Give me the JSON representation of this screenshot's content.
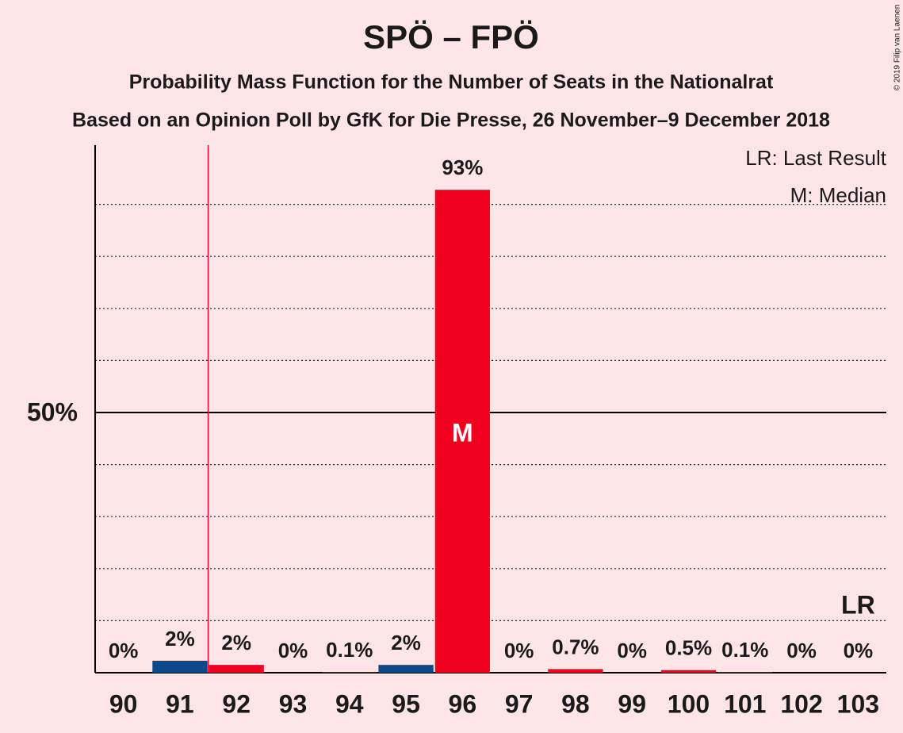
{
  "chart_data": {
    "type": "bar",
    "title": "SPÖ – FPÖ",
    "subtitle": "Probability Mass Function for the Number of Seats in the Nationalrat",
    "subtitle2": "Based on an Opinion Poll by GfK for Die Presse, 26 November–9 December 2018",
    "copyright": "© 2019 Filip van Laenen",
    "legend": [
      "LR: Last Result",
      "M: Median"
    ],
    "categories": [
      "90",
      "91",
      "92",
      "93",
      "94",
      "95",
      "96",
      "97",
      "98",
      "99",
      "100",
      "101",
      "102",
      "103"
    ],
    "values": [
      0,
      2.3,
      1.5,
      0,
      0.1,
      1.5,
      92.8,
      0,
      0.7,
      0,
      0.5,
      0.1,
      0,
      0
    ],
    "value_labels": [
      "0%",
      "2%",
      "2%",
      "0%",
      "0.1%",
      "2%",
      "93%",
      "0%",
      "0.7%",
      "0%",
      "0.5%",
      "0.1%",
      "0%",
      "0%"
    ],
    "colors": [
      "#f0001e",
      "#0a4a8c",
      "#f0001e",
      "#f0001e",
      "#f0001e",
      "#0a4a8c",
      "#f0001e",
      "#f0001e",
      "#f0001e",
      "#f0001e",
      "#f0001e",
      "#f0001e",
      "#f0001e",
      "#f0001e"
    ],
    "ylim": [
      0,
      100
    ],
    "yticks": [
      {
        "value": 50,
        "label": "50%"
      }
    ],
    "gridlines": [
      10,
      20,
      30,
      40,
      60,
      70,
      80,
      90
    ],
    "majority": "92",
    "last_result": "103",
    "lr_marker": "LR",
    "median": "96",
    "median_marker": "M"
  }
}
